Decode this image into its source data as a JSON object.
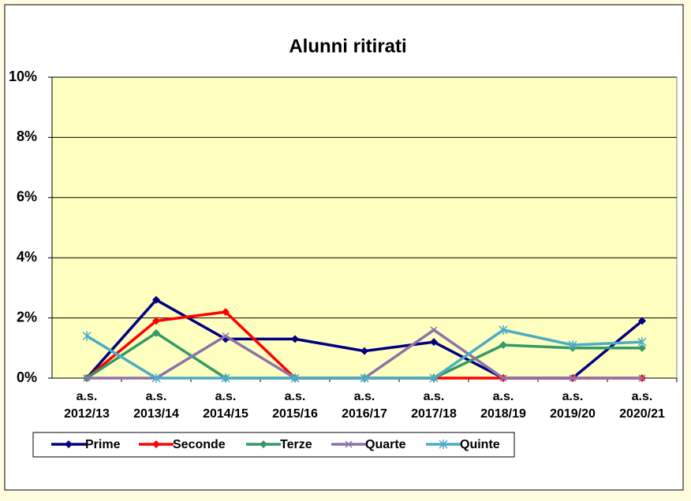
{
  "chart_data": {
    "type": "line",
    "title": "Alunni ritirati",
    "categories": [
      "a.s. 2012/13",
      "a.s. 2013/14",
      "a.s. 2014/15",
      "a.s. 2015/16",
      "a.s. 2016/17",
      "a.s. 2017/18",
      "a.s. 2018/19",
      "a.s. 2019/20",
      "a.s. 2020/21"
    ],
    "series": [
      {
        "name": "Prime",
        "color": "#000080",
        "marker": "diamond",
        "values": [
          0,
          2.6,
          1.3,
          1.3,
          0.9,
          1.2,
          0,
          0,
          1.9
        ]
      },
      {
        "name": "Seconde",
        "color": "#ff0000",
        "marker": "diamond",
        "values": [
          0,
          1.9,
          2.2,
          0,
          0,
          0,
          0,
          0,
          0
        ]
      },
      {
        "name": "Terze",
        "color": "#339966",
        "marker": "diamond",
        "values": [
          0,
          1.5,
          0,
          0,
          0,
          0,
          1.1,
          1.0,
          1.0
        ]
      },
      {
        "name": "Quarte",
        "color": "#8e72a8",
        "marker": "x",
        "values": [
          0,
          0,
          1.4,
          0,
          0,
          1.6,
          0,
          0,
          0
        ]
      },
      {
        "name": "Quinte",
        "color": "#4bacc6",
        "marker": "star",
        "values": [
          1.4,
          0,
          0,
          0,
          0,
          0,
          1.6,
          1.1,
          1.2
        ]
      }
    ],
    "ylim": [
      0,
      10
    ],
    "yticks": [
      {
        "value": 0,
        "label": "0%"
      },
      {
        "value": 2,
        "label": "2%"
      },
      {
        "value": 4,
        "label": "4%"
      },
      {
        "value": 6,
        "label": "6%"
      },
      {
        "value": 8,
        "label": "8%"
      },
      {
        "value": 10,
        "label": "10%"
      }
    ],
    "grid": true,
    "legend": "bottom"
  }
}
